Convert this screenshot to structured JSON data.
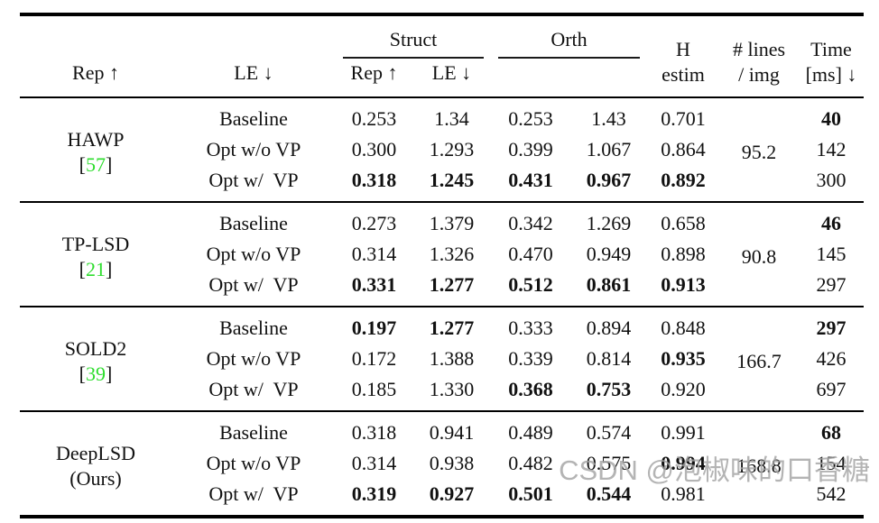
{
  "colors": {
    "citation_green": "#2edd2e",
    "rule_black": "#000000",
    "text_black": "#111111",
    "watermark_gray": "#a3a3a3"
  },
  "header": {
    "struct": "Struct",
    "orth": "Orth",
    "rep": "Rep ↑",
    "le": "LE ↓",
    "h_estim": [
      "H",
      "estim"
    ],
    "lines_per_img": [
      "# lines",
      "/ img"
    ],
    "time": [
      "Time",
      "[ms] ↓"
    ]
  },
  "sections": [
    {
      "method": "HAWP",
      "cite_open": "[",
      "cite_num": "57",
      "cite_close": "]",
      "lines_per_img": "95.2",
      "rows": [
        {
          "variant": "Baseline",
          "cells": [
            {
              "v": "0.253",
              "b": false
            },
            {
              "v": "1.34",
              "b": false
            },
            {
              "v": "0.253",
              "b": false
            },
            {
              "v": "1.43",
              "b": false
            },
            {
              "v": "0.701",
              "b": false
            }
          ],
          "time": {
            "v": "40",
            "b": true
          }
        },
        {
          "variant": "Opt w/o VP",
          "cells": [
            {
              "v": "0.300",
              "b": false
            },
            {
              "v": "1.293",
              "b": false
            },
            {
              "v": "0.399",
              "b": false
            },
            {
              "v": "1.067",
              "b": false
            },
            {
              "v": "0.864",
              "b": false
            }
          ],
          "time": {
            "v": "142",
            "b": false
          }
        },
        {
          "variant": "Opt w/  VP",
          "cells": [
            {
              "v": "0.318",
              "b": true
            },
            {
              "v": "1.245",
              "b": true
            },
            {
              "v": "0.431",
              "b": true
            },
            {
              "v": "0.967",
              "b": true
            },
            {
              "v": "0.892",
              "b": true
            }
          ],
          "time": {
            "v": "300",
            "b": false
          }
        }
      ]
    },
    {
      "method": "TP-LSD",
      "cite_open": "[",
      "cite_num": "21",
      "cite_close": "]",
      "lines_per_img": "90.8",
      "rows": [
        {
          "variant": "Baseline",
          "cells": [
            {
              "v": "0.273",
              "b": false
            },
            {
              "v": "1.379",
              "b": false
            },
            {
              "v": "0.342",
              "b": false
            },
            {
              "v": "1.269",
              "b": false
            },
            {
              "v": "0.658",
              "b": false
            }
          ],
          "time": {
            "v": "46",
            "b": true
          }
        },
        {
          "variant": "Opt w/o VP",
          "cells": [
            {
              "v": "0.314",
              "b": false
            },
            {
              "v": "1.326",
              "b": false
            },
            {
              "v": "0.470",
              "b": false
            },
            {
              "v": "0.949",
              "b": false
            },
            {
              "v": "0.898",
              "b": false
            }
          ],
          "time": {
            "v": "145",
            "b": false
          }
        },
        {
          "variant": "Opt w/  VP",
          "cells": [
            {
              "v": "0.331",
              "b": true
            },
            {
              "v": "1.277",
              "b": true
            },
            {
              "v": "0.512",
              "b": true
            },
            {
              "v": "0.861",
              "b": true
            },
            {
              "v": "0.913",
              "b": true
            }
          ],
          "time": {
            "v": "297",
            "b": false
          }
        }
      ]
    },
    {
      "method": "SOLD2",
      "cite_open": "[",
      "cite_num": "39",
      "cite_close": "]",
      "lines_per_img": "166.7",
      "rows": [
        {
          "variant": "Baseline",
          "cells": [
            {
              "v": "0.197",
              "b": true
            },
            {
              "v": "1.277",
              "b": true
            },
            {
              "v": "0.333",
              "b": false
            },
            {
              "v": "0.894",
              "b": false
            },
            {
              "v": "0.848",
              "b": false
            }
          ],
          "time": {
            "v": "297",
            "b": true
          }
        },
        {
          "variant": "Opt w/o VP",
          "cells": [
            {
              "v": "0.172",
              "b": false
            },
            {
              "v": "1.388",
              "b": false
            },
            {
              "v": "0.339",
              "b": false
            },
            {
              "v": "0.814",
              "b": false
            },
            {
              "v": "0.935",
              "b": true
            }
          ],
          "time": {
            "v": "426",
            "b": false
          }
        },
        {
          "variant": "Opt w/  VP",
          "cells": [
            {
              "v": "0.185",
              "b": false
            },
            {
              "v": "1.330",
              "b": false
            },
            {
              "v": "0.368",
              "b": true
            },
            {
              "v": "0.753",
              "b": true
            },
            {
              "v": "0.920",
              "b": false
            }
          ],
          "time": {
            "v": "697",
            "b": false
          }
        }
      ]
    },
    {
      "method": "DeepLSD",
      "sub": "(Ours)",
      "lines_per_img": "168.8",
      "rows": [
        {
          "variant": "Baseline",
          "cells": [
            {
              "v": "0.318",
              "b": false
            },
            {
              "v": "0.941",
              "b": false
            },
            {
              "v": "0.489",
              "b": false
            },
            {
              "v": "0.574",
              "b": false
            },
            {
              "v": "0.991",
              "b": false
            }
          ],
          "time": {
            "v": "68",
            "b": true
          }
        },
        {
          "variant": "Opt w/o VP",
          "cells": [
            {
              "v": "0.314",
              "b": false
            },
            {
              "v": "0.938",
              "b": false
            },
            {
              "v": "0.482",
              "b": false
            },
            {
              "v": "0.575",
              "b": false
            },
            {
              "v": "0.994",
              "b": true
            }
          ],
          "time": {
            "v": "154",
            "b": false
          }
        },
        {
          "variant": "Opt w/  VP",
          "cells": [
            {
              "v": "0.319",
              "b": true
            },
            {
              "v": "0.927",
              "b": true
            },
            {
              "v": "0.501",
              "b": true
            },
            {
              "v": "0.544",
              "b": true
            },
            {
              "v": "0.981",
              "b": false
            }
          ],
          "time": {
            "v": "542",
            "b": false
          }
        }
      ]
    }
  ],
  "watermark": {
    "text": "CSDN @泡椒味的口香糖"
  }
}
